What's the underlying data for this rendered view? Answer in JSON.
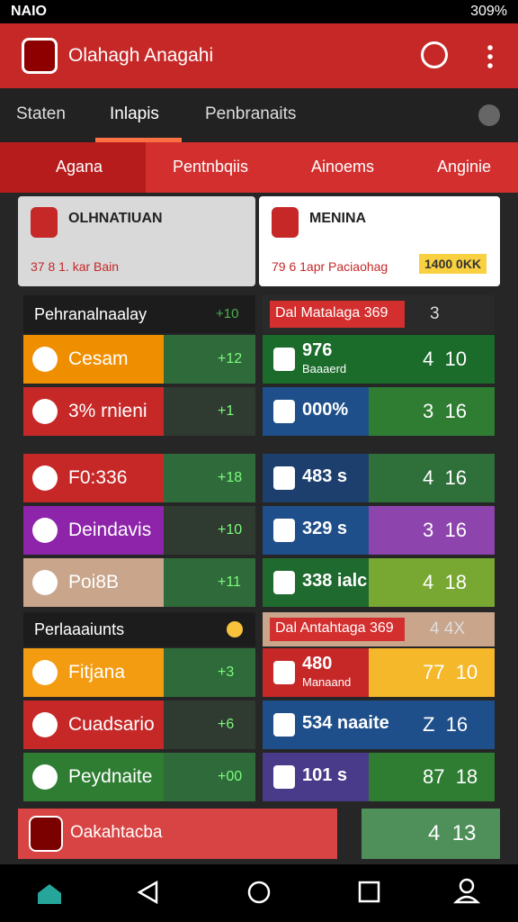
{
  "status_bar": {
    "left": "NAIO",
    "battery": "309%"
  },
  "app_bar": {
    "title": "Olahagh Anagahi"
  },
  "tabs": [
    "Staten",
    "Inlapis",
    "Penbranaits"
  ],
  "sub_tabs": [
    "Agana",
    "Pentnbqiis",
    "Ainoems",
    "Anginie"
  ],
  "match_cards": [
    {
      "name": "OLHNATIUAN",
      "info": "37 8 1. kar Bain"
    },
    {
      "name": "MENINA",
      "info": "79 6 1apr Paciaohag",
      "badge": "1400 0KK"
    }
  ],
  "groups": [
    {
      "left": {
        "header": "Pehranalnaalay",
        "header_value": "+10",
        "rows": [
          {
            "name": "Cesam",
            "value": "+12"
          },
          {
            "name": "3% rnieni",
            "value": "+1"
          }
        ]
      },
      "right": {
        "header": "Dal Matalaga 369",
        "header_value": "3",
        "rows": [
          {
            "name": "976",
            "sub": "Baaaerd",
            "score": "4  10"
          },
          {
            "name": "000%",
            "score": "3  16"
          }
        ]
      }
    },
    {
      "left": {
        "rows": [
          {
            "name": "F0:336",
            "value": "+18"
          },
          {
            "name": "Deindavis",
            "value": "+10"
          },
          {
            "name": "Poi8B",
            "value": "+11"
          }
        ]
      },
      "right": {
        "rows": [
          {
            "name": "483 s",
            "score": "4  16"
          },
          {
            "name": "329 s",
            "score": "3  16"
          },
          {
            "name": "338 ialc",
            "score": "4  18"
          }
        ]
      }
    },
    {
      "left": {
        "header": "Perlaaaiunts",
        "rows": [
          {
            "name": "Fitjana",
            "value": "+3"
          },
          {
            "name": "Cuadsario",
            "value": "+6"
          },
          {
            "name": "Peydnaite",
            "value": "+00"
          }
        ]
      },
      "right": {
        "header": "Dal Antahtaga 369",
        "header_value": "4  4X",
        "rows": [
          {
            "name": "480",
            "sub": "Manaand",
            "score": "77  10"
          },
          {
            "name": "534 naaite",
            "score": "Z  16"
          },
          {
            "name": "101 s",
            "score": "87  18"
          }
        ]
      }
    }
  ],
  "footer": {
    "name": "Oakahtacba",
    "score": "4  13"
  }
}
